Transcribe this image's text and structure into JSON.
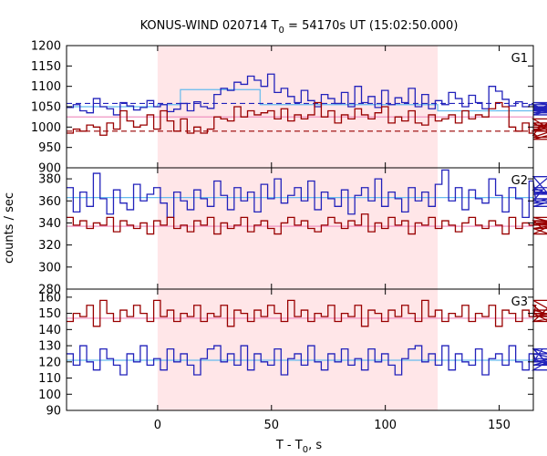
{
  "chart_data": {
    "type": "line",
    "title_main": "KONUS-WIND 020714 T",
    "title_sub": "0",
    "title_rest": " = 54170s UT (15:02:50.000)",
    "xlabel_main": "T - T",
    "xlabel_sub": "0",
    "xlabel_rest": ", s",
    "ylabel": "counts / sec",
    "xlim": [
      -40,
      165
    ],
    "xticks": [
      0,
      50,
      100,
      150
    ],
    "shaded_interval": [
      0,
      123
    ],
    "colors": {
      "blue": "#2222bb",
      "red": "#990000",
      "light_blue": "#66bbee",
      "pink": "#ee88bb",
      "shade": "#ffe6e8"
    },
    "bin_width": 2.944,
    "bin_start": -40,
    "panels": [
      {
        "name": "G1",
        "ylim": [
          900,
          1200
        ],
        "yticks": [
          900,
          950,
          1000,
          1050,
          1100,
          1150,
          1200
        ],
        "series": [
          {
            "color_key": "blue",
            "values": [
              1048,
              1055,
              1040,
              1035,
              1070,
              1050,
              1045,
              1030,
              1060,
              1052,
              1042,
              1048,
              1065,
              1050,
              1055,
              1038,
              1044,
              1058,
              1040,
              1062,
              1050,
              1046,
              1080,
              1095,
              1090,
              1110,
              1105,
              1125,
              1115,
              1100,
              1130,
              1085,
              1095,
              1075,
              1060,
              1090,
              1065,
              1050,
              1080,
              1070,
              1058,
              1085,
              1050,
              1100,
              1060,
              1075,
              1048,
              1090,
              1055,
              1072,
              1060,
              1095,
              1050,
              1080,
              1045,
              1065,
              1055,
              1085,
              1070,
              1050,
              1078,
              1060,
              1045,
              1100,
              1088,
              1068,
              1052,
              1062,
              1050,
              1055,
              1045,
              1040,
              1055,
              1030,
              1048,
              1042,
              1050,
              1035,
              1060,
              1045
            ]
          },
          {
            "color_key": "red",
            "values": [
              985,
              995,
              990,
              1005,
              1000,
              980,
              1010,
              995,
              1040,
              1015,
              1000,
              1005,
              1030,
              995,
              1040,
              1015,
              990,
              1020,
              985,
              1000,
              985,
              995,
              1025,
              1020,
              1015,
              1050,
              1025,
              1040,
              1030,
              1035,
              1040,
              1020,
              1045,
              1015,
              1030,
              1020,
              1030,
              1060,
              1025,
              1040,
              1010,
              1030,
              1020,
              1045,
              1030,
              1020,
              1035,
              1050,
              1010,
              1025,
              1015,
              1040,
              1010,
              1005,
              1030,
              1015,
              1020,
              1030,
              1010,
              1040,
              1020,
              1030,
              1025,
              1045,
              1060,
              1050,
              1000,
              990,
              1010,
              985,
              980,
              1010,
              990,
              1020,
              975,
              1005,
              1000,
              995,
              970,
              1010
            ]
          }
        ],
        "levels": [
          {
            "color_key": "light_blue",
            "style": "solid",
            "segments": [
              [
                -40,
                0,
                1050
              ],
              [
                0,
                10,
                1055
              ],
              [
                10,
                45,
                1092
              ],
              [
                45,
                123,
                1055
              ],
              [
                123,
                165,
                1040
              ]
            ]
          },
          {
            "color_key": "pink",
            "style": "solid",
            "segments": [
              [
                -40,
                165,
                1025
              ]
            ]
          },
          {
            "color_key": "blue",
            "style": "dashed",
            "segments": [
              [
                -40,
                165,
                1058
              ]
            ]
          },
          {
            "color_key": "red",
            "style": "dashed",
            "segments": [
              [
                -40,
                165,
                990
              ]
            ]
          }
        ]
      },
      {
        "name": "G2",
        "ylim": [
          280,
          390
        ],
        "yticks": [
          280,
          300,
          320,
          340,
          360,
          380
        ],
        "series": [
          {
            "color_key": "blue",
            "values": [
              372,
              350,
              368,
              355,
              385,
              362,
              348,
              370,
              358,
              352,
              375,
              360,
              366,
              372,
              358,
              345,
              368,
              360,
              352,
              370,
              362,
              355,
              378,
              365,
              352,
              372,
              360,
              368,
              350,
              375,
              362,
              380,
              358,
              365,
              372,
              360,
              378,
              352,
              368,
              362,
              355,
              370,
              348,
              365,
              372,
              360,
              380,
              355,
              368,
              362,
              350,
              372,
              360,
              368,
              355,
              375,
              388,
              360,
              372,
              352,
              370,
              362,
              358,
              380,
              365,
              350,
              372,
              362,
              345,
              378,
              360,
              370,
              382,
              358,
              366,
              372,
              355,
              368,
              362,
              360
            ]
          },
          {
            "color_key": "red",
            "values": [
              345,
              338,
              342,
              335,
              340,
              338,
              345,
              332,
              342,
              338,
              335,
              340,
              330,
              342,
              338,
              345,
              335,
              338,
              332,
              342,
              338,
              345,
              330,
              340,
              335,
              338,
              345,
              332,
              338,
              342,
              335,
              330,
              340,
              345,
              338,
              342,
              335,
              332,
              338,
              345,
              340,
              335,
              342,
              338,
              348,
              332,
              340,
              335,
              345,
              338,
              342,
              330,
              340,
              338,
              345,
              335,
              342,
              338,
              332,
              340,
              345,
              338,
              335,
              342,
              338,
              330,
              345,
              335,
              340,
              338,
              342,
              335,
              330,
              340,
              338,
              345,
              335,
              342,
              338,
              340
            ]
          }
        ],
        "levels": [
          {
            "color_key": "light_blue",
            "style": "solid",
            "segments": [
              [
                -40,
                165,
                363
              ]
            ]
          },
          {
            "color_key": "pink",
            "style": "solid",
            "segments": [
              [
                -40,
                165,
                337
              ]
            ]
          }
        ]
      },
      {
        "name": "G3",
        "ylim": [
          90,
          165
        ],
        "yticks": [
          90,
          100,
          110,
          120,
          130,
          140,
          150,
          160
        ],
        "series": [
          {
            "color_key": "blue",
            "values": [
              125,
              118,
              130,
              120,
              115,
              128,
              122,
              118,
              112,
              125,
              120,
              130,
              118,
              122,
              115,
              128,
              120,
              125,
              118,
              112,
              122,
              128,
              130,
              120,
              125,
              118,
              130,
              115,
              125,
              120,
              118,
              128,
              112,
              122,
              125,
              118,
              130,
              120,
              115,
              125,
              120,
              128,
              118,
              122,
              115,
              128,
              120,
              125,
              118,
              112,
              122,
              128,
              130,
              120,
              125,
              118,
              130,
              115,
              125,
              120,
              118,
              128,
              112,
              122,
              125,
              118,
              130,
              120,
              115,
              125,
              120,
              128,
              118,
              122,
              115,
              128,
              120,
              125,
              118,
              120
            ]
          },
          {
            "color_key": "red",
            "values": [
              145,
              150,
              148,
              155,
              142,
              158,
              150,
              145,
              152,
              148,
              155,
              150,
              145,
              158,
              148,
              152,
              145,
              150,
              148,
              155,
              145,
              150,
              148,
              155,
              142,
              152,
              150,
              145,
              152,
              148,
              155,
              150,
              145,
              158,
              148,
              152,
              145,
              150,
              148,
              155,
              145,
              150,
              148,
              155,
              142,
              152,
              150,
              145,
              152,
              148,
              155,
              150,
              145,
              158,
              148,
              152,
              145,
              150,
              148,
              155,
              145,
              150,
              148,
              155,
              142,
              152,
              150,
              145,
              152,
              148,
              155,
              150,
              145,
              158,
              148,
              152,
              145,
              150,
              148,
              150
            ]
          }
        ],
        "levels": [
          {
            "color_key": "light_blue",
            "style": "solid",
            "segments": [
              [
                -40,
                165,
                121
              ]
            ]
          },
          {
            "color_key": "pink",
            "style": "solid",
            "segments": [
              [
                -40,
                165,
                147
              ]
            ]
          }
        ]
      }
    ]
  }
}
